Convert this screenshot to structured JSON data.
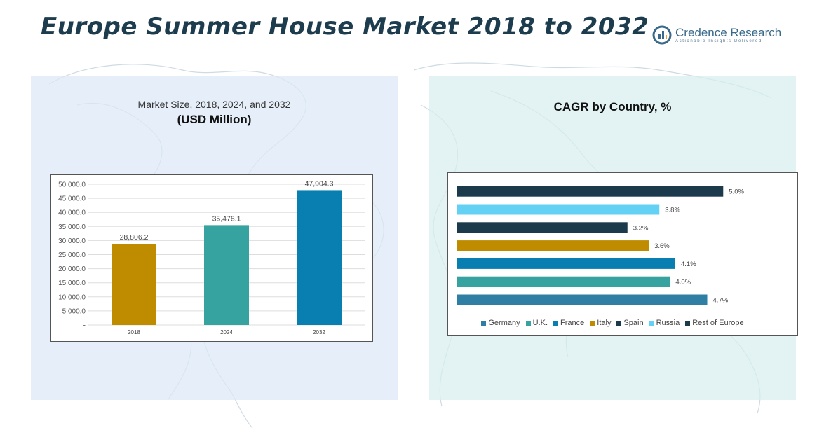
{
  "header": {
    "title_part1": "Europe Summer House Market",
    "title_part2": "2018 to 2032"
  },
  "logo": {
    "name": "Credence Research",
    "tagline": "Actionable Insights Delivered"
  },
  "colors": {
    "title": "#1d3d4f",
    "bar_2018": "#bf8c00",
    "bar_2024": "#36a3a0",
    "bar_2032": "#087fb0",
    "germany": "#2e7fa3",
    "uk": "#36a3a0",
    "france": "#087fb0",
    "italy": "#bf8c00",
    "spain": "#1b3a4b",
    "russia": "#63d1f4",
    "rest_of_europe": "#1b3a4b"
  },
  "chart_data": [
    {
      "type": "bar",
      "title": "Market Size, 2018, 2024, and 2032",
      "subtitle": "(USD Million)",
      "categories": [
        "2018",
        "2024",
        "2032"
      ],
      "values": [
        28806.2,
        35478.1,
        47904.3
      ],
      "value_labels": [
        "28,806.2",
        "35,478.1",
        "47,904.3"
      ],
      "ylim": [
        0,
        50000
      ],
      "y_ticks": [
        "-",
        "5,000.0",
        "10,000.0",
        "15,000.0",
        "20,000.0",
        "25,000.0",
        "30,000.0",
        "35,000.0",
        "40,000.0",
        "45,000.0",
        "50,000.0"
      ],
      "grid": true
    },
    {
      "type": "bar",
      "orientation": "horizontal",
      "title": "CAGR by Country, %",
      "categories": [
        "Germany",
        "U.K.",
        "France",
        "Italy",
        "Spain",
        "Russia",
        "Rest of Europe"
      ],
      "values": [
        4.7,
        4.0,
        4.1,
        3.6,
        3.2,
        3.8,
        5.0
      ],
      "value_labels": [
        "4.7%",
        "4.0%",
        "4.1%",
        "3.6%",
        "3.2%",
        "3.8%",
        "5.0%"
      ],
      "xlim": [
        0,
        5.5
      ],
      "grid": false,
      "legend_position": "bottom"
    }
  ]
}
